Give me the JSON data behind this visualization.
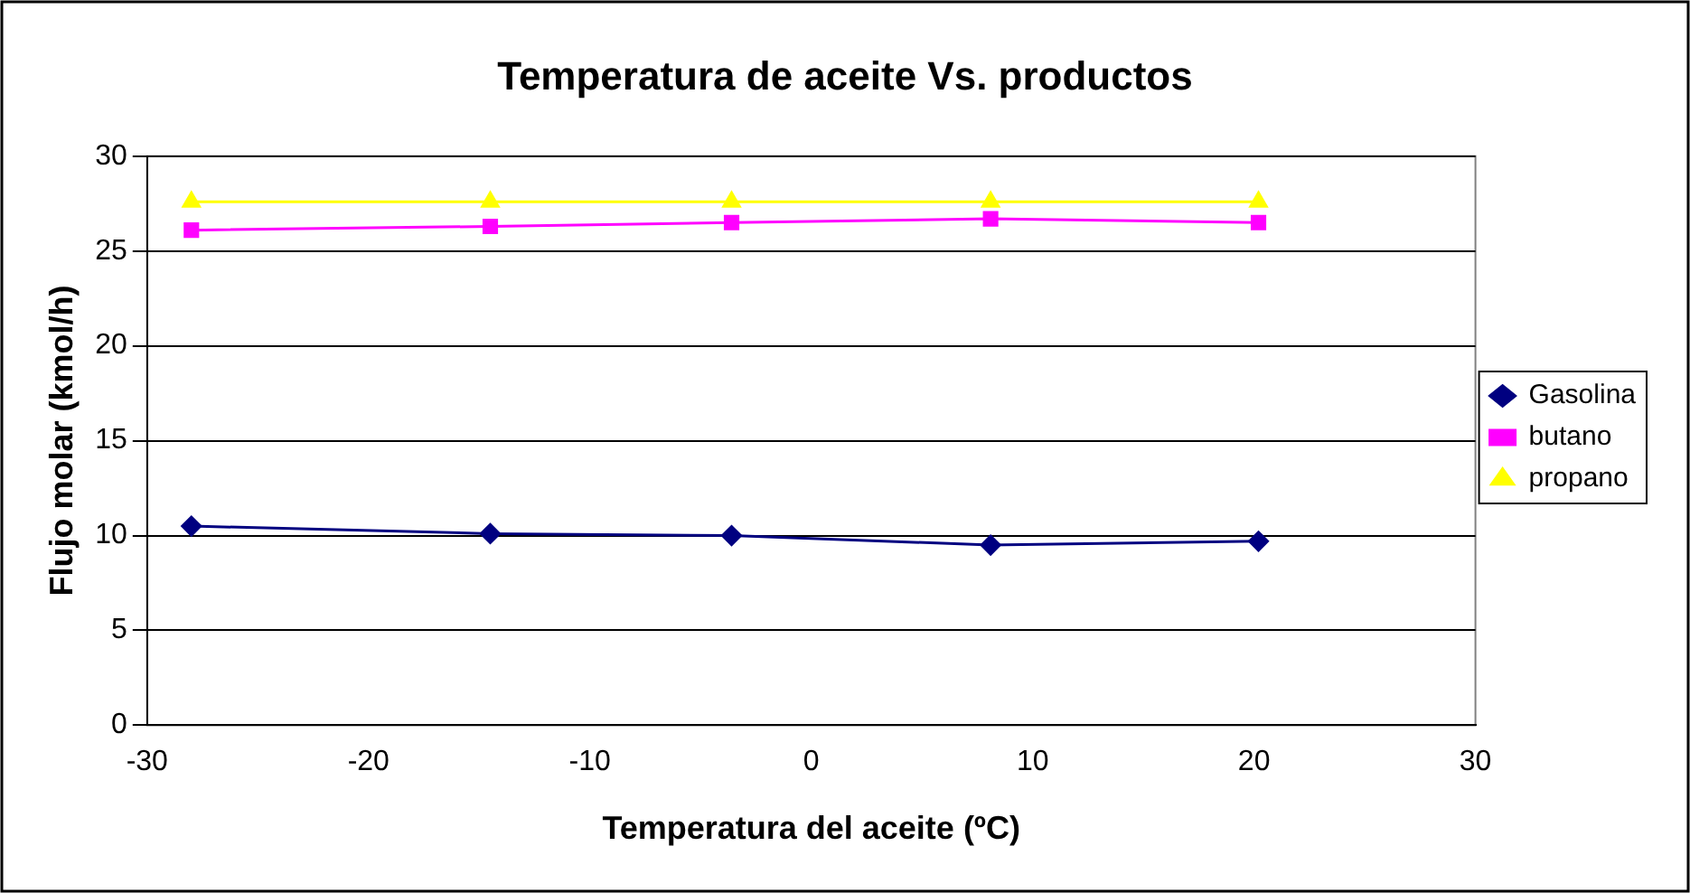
{
  "chart_data": {
    "type": "line",
    "title": "Temperatura de aceite Vs. productos",
    "xlabel": "Temperatura del aceite (ºC)",
    "ylabel": "Flujo molar (kmol/h)",
    "x": [
      -28,
      -14.5,
      -3.6,
      8.1,
      20.2
    ],
    "series": [
      {
        "name": "Gasolina",
        "color": "#000080",
        "marker": "diamond",
        "values": [
          10.5,
          10.1,
          10.0,
          9.5,
          9.7
        ]
      },
      {
        "name": "butano",
        "color": "#ff00ff",
        "marker": "square",
        "values": [
          26.1,
          26.3,
          26.5,
          26.7,
          26.5
        ]
      },
      {
        "name": "propano",
        "color": "#ffff00",
        "marker": "triangle",
        "values": [
          27.6,
          27.6,
          27.6,
          27.6,
          27.6
        ]
      }
    ],
    "xlim": [
      -30,
      30
    ],
    "xticks": [
      -30,
      -20,
      -10,
      0,
      10,
      20,
      30
    ],
    "ylim": [
      0,
      30
    ],
    "yticks": [
      0,
      5,
      10,
      15,
      20,
      25,
      30
    ],
    "grid": "y",
    "legend": "right",
    "line_style": "solid"
  }
}
